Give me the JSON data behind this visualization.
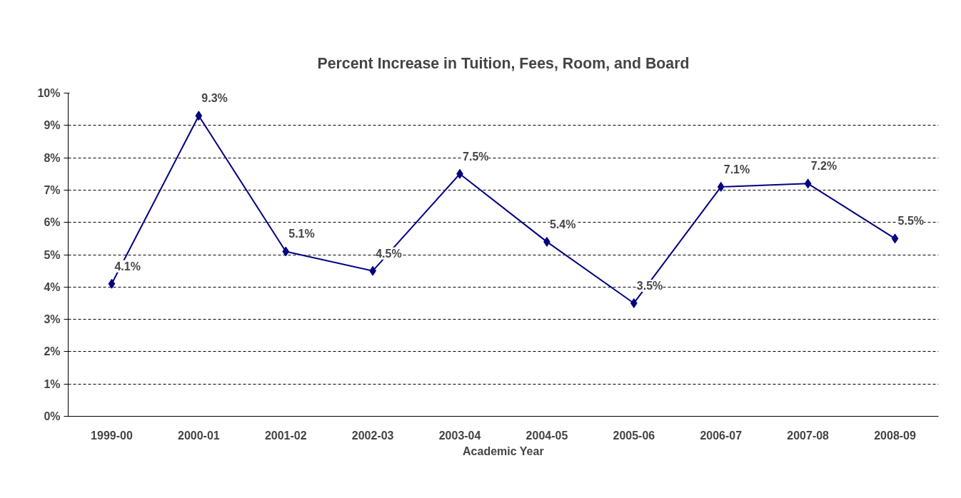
{
  "chart_data": {
    "type": "line",
    "title": "Percent Increase in Tuition, Fees, Room, and Board",
    "xlabel": "Academic Year",
    "categories": [
      "1999-00",
      "2000-01",
      "2001-02",
      "2002-03",
      "2003-04",
      "2004-05",
      "2005-06",
      "2006-07",
      "2007-08",
      "2008-09"
    ],
    "series": [
      {
        "color": "#000080",
        "values": [
          4.1,
          9.3,
          5.1,
          4.5,
          7.5,
          5.4,
          3.5,
          7.1,
          7.2,
          5.5
        ],
        "value_labels": [
          "4.1%",
          "9.3%",
          "5.1%",
          "4.5%",
          "7.5%",
          "5.4%",
          "3.5%",
          "7.1%",
          "7.2%",
          "5.5%"
        ]
      }
    ],
    "ylim": [
      0,
      10
    ],
    "yticks": [
      {
        "value": 0,
        "label": "0%"
      },
      {
        "value": 1,
        "label": "1%"
      },
      {
        "value": 2,
        "label": "2%"
      },
      {
        "value": 3,
        "label": "3%"
      },
      {
        "value": 4,
        "label": "4%"
      },
      {
        "value": 5,
        "label": "5%"
      },
      {
        "value": 6,
        "label": "6%"
      },
      {
        "value": 7,
        "label": "7%"
      },
      {
        "value": 8,
        "label": "8%"
      },
      {
        "value": 9,
        "label": "9%"
      },
      {
        "value": 10,
        "label": "10%"
      }
    ],
    "grid": "y",
    "marker": "diamond",
    "line_style": "solid"
  }
}
